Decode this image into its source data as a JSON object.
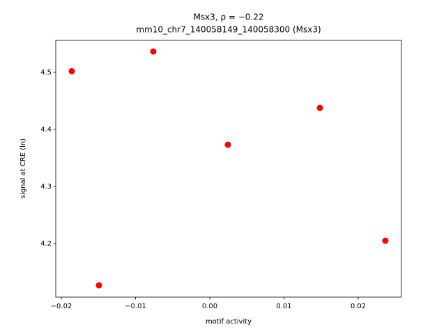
{
  "chart_data": {
    "type": "scatter",
    "title": "Msx3, ρ = −0.22",
    "subtitle": "mm10_chr7_140058149_140058300 (Msx3)",
    "x_label": "motif activity",
    "y_label": "signal at CRE (ln)",
    "x": [
      -0.01859,
      -0.01493,
      -0.00761,
      0.00244,
      0.01484,
      0.02366
    ],
    "series": [
      {
        "color": "#ff0000",
        "values": [
          4.502,
          4.1268,
          4.5366,
          4.3732,
          4.4378,
          4.2049
        ]
      }
    ],
    "xlim": [
      -0.02075,
      0.02582
    ],
    "ylim": [
      4.1061,
      4.5561
    ],
    "xticks": [
      {
        "value": -0.02,
        "label": "−0.02"
      },
      {
        "value": -0.01,
        "label": "−0.01"
      },
      {
        "value": 0,
        "label": "0.00"
      },
      0.01,
      0.02
    ],
    "yticks": [
      {
        "value": 4.2,
        "label": "4.2"
      },
      4.3,
      4.4,
      4.5
    ]
  }
}
